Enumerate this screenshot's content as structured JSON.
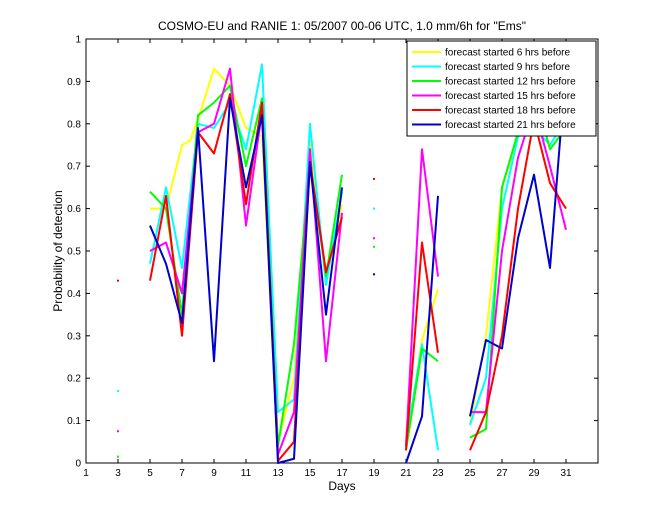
{
  "chart_data": {
    "type": "line",
    "title": "COSMO-EU and RANIE 1: 05/2007 00-06 UTC, 1.0 mm/6h for \"Ems\"",
    "xlabel": "Days",
    "ylabel": "Probability of detection",
    "xlim": [
      1,
      33
    ],
    "ylim": [
      0,
      1
    ],
    "xticks": [
      "1",
      "3",
      "5",
      "7",
      "9",
      "11",
      "13",
      "15",
      "17",
      "19",
      "21",
      "23",
      "25",
      "27",
      "29",
      "31"
    ],
    "yticks": [
      "0",
      "0.1",
      "0.2",
      "0.3",
      "0.4",
      "0.5",
      "0.6",
      "0.7",
      "0.8",
      "0.9",
      "1"
    ],
    "legend_position": "top-right",
    "series": [
      {
        "name": "forecast started 6 hrs before",
        "color": "#ffff00",
        "points": [
          [
            3,
            0.015
          ],
          [
            5,
            0.6
          ],
          [
            6,
            0.6
          ],
          [
            7,
            0.75
          ],
          [
            7.5,
            0.76
          ],
          [
            8,
            0.81
          ],
          [
            9,
            0.93
          ],
          [
            10,
            0.89
          ],
          [
            11,
            0.79
          ],
          [
            12,
            0.77
          ],
          [
            13,
            0.05
          ],
          [
            14,
            0.2
          ],
          [
            15,
            0.76
          ],
          [
            16,
            0.43
          ],
          [
            17,
            0.61
          ],
          [
            19,
            0.51
          ],
          [
            21,
            0.03
          ],
          [
            22,
            0.29
          ],
          [
            23,
            0.41
          ],
          [
            25,
            0.09
          ],
          [
            26,
            0.3
          ],
          [
            27,
            0.65
          ],
          [
            28,
            0.77
          ],
          [
            29,
            0.87
          ],
          [
            30,
            0.87
          ],
          [
            31,
            0.92
          ]
        ]
      },
      {
        "name": "forecast started 9 hrs before",
        "color": "#00ffff",
        "points": [
          [
            3,
            0.17
          ],
          [
            5,
            0.47
          ],
          [
            6,
            0.65
          ],
          [
            7,
            0.46
          ],
          [
            8,
            0.8
          ],
          [
            9,
            0.79
          ],
          [
            10,
            0.85
          ],
          [
            11,
            0.74
          ],
          [
            12,
            0.94
          ],
          [
            13,
            0.12
          ],
          [
            14,
            0.15
          ],
          [
            15,
            0.8
          ],
          [
            16,
            0.42
          ],
          [
            17,
            0.64
          ],
          [
            19,
            0.6
          ],
          [
            21,
            0.05
          ],
          [
            22,
            0.28
          ],
          [
            23,
            0.03
          ],
          [
            25,
            0.09
          ],
          [
            26,
            0.2
          ],
          [
            27,
            0.6
          ],
          [
            28,
            0.77
          ],
          [
            29,
            0.79
          ],
          [
            30,
            0.75
          ],
          [
            31,
            0.81
          ]
        ]
      },
      {
        "name": "forecast started 12 hrs before",
        "color": "#00ff00",
        "points": [
          [
            3,
            0.015
          ],
          [
            5,
            0.64
          ],
          [
            6,
            0.6
          ],
          [
            7,
            0.35
          ],
          [
            8,
            0.82
          ],
          [
            9,
            0.85
          ],
          [
            10,
            0.89
          ],
          [
            11,
            0.7
          ],
          [
            12,
            0.86
          ],
          [
            13,
            0.04
          ],
          [
            14,
            0.28
          ],
          [
            15,
            0.71
          ],
          [
            16,
            0.44
          ],
          [
            17,
            0.68
          ],
          [
            19,
            0.51
          ],
          [
            21,
            0.03
          ],
          [
            22,
            0.27
          ],
          [
            23,
            0.24
          ],
          [
            25,
            0.06
          ],
          [
            26,
            0.08
          ],
          [
            27,
            0.65
          ],
          [
            28,
            0.78
          ],
          [
            29,
            0.88
          ],
          [
            30,
            0.74
          ],
          [
            31,
            0.79
          ]
        ]
      },
      {
        "name": "forecast started 15 hrs before",
        "color": "#ff00ff",
        "points": [
          [
            3,
            0.075
          ],
          [
            5,
            0.5
          ],
          [
            6,
            0.52
          ],
          [
            7,
            0.4
          ],
          [
            8,
            0.78
          ],
          [
            9,
            0.8
          ],
          [
            10,
            0.93
          ],
          [
            11,
            0.56
          ],
          [
            12,
            0.83
          ],
          [
            13,
            0.02
          ],
          [
            14,
            0.12
          ],
          [
            15,
            0.74
          ],
          [
            16,
            0.24
          ],
          [
            17,
            0.59
          ],
          [
            19,
            0.53
          ],
          [
            21,
            0.04
          ],
          [
            22,
            0.74
          ],
          [
            23,
            0.44
          ],
          [
            25,
            0.12
          ],
          [
            26,
            0.12
          ],
          [
            27,
            0.5
          ],
          [
            28,
            0.72
          ],
          [
            29,
            0.84
          ],
          [
            30,
            0.7
          ],
          [
            31,
            0.55
          ]
        ]
      },
      {
        "name": "forecast started 18 hrs before",
        "color": "#ff0000",
        "points": [
          [
            3,
            0.43
          ],
          [
            5,
            0.43
          ],
          [
            6,
            0.63
          ],
          [
            7,
            0.3
          ],
          [
            8,
            0.78
          ],
          [
            9,
            0.73
          ],
          [
            10,
            0.87
          ],
          [
            11,
            0.61
          ],
          [
            12,
            0.85
          ],
          [
            13,
            0.005
          ],
          [
            14,
            0.05
          ],
          [
            15,
            0.71
          ],
          [
            16,
            0.45
          ],
          [
            17,
            0.58
          ],
          [
            19,
            0.67
          ],
          [
            21,
            0.03
          ],
          [
            22,
            0.52
          ],
          [
            23,
            0.26
          ],
          [
            25,
            0.03
          ],
          [
            26,
            0.12
          ],
          [
            27,
            0.3
          ],
          [
            28,
            0.6
          ],
          [
            29,
            0.81
          ],
          [
            30,
            0.66
          ],
          [
            31,
            0.6
          ]
        ]
      },
      {
        "name": "forecast started 21 hrs before",
        "color": "#0000cd",
        "points": [
          [
            5,
            0.56
          ],
          [
            6,
            0.47
          ],
          [
            7,
            0.33
          ],
          [
            8,
            0.79
          ],
          [
            9,
            0.24
          ],
          [
            10,
            0.86
          ],
          [
            11,
            0.65
          ],
          [
            12,
            0.82
          ],
          [
            13,
            0.0
          ],
          [
            14,
            0.01
          ],
          [
            15,
            0.71
          ],
          [
            16,
            0.35
          ],
          [
            17,
            0.65
          ],
          [
            19,
            0.445
          ],
          [
            21,
            0.0
          ],
          [
            22,
            0.11
          ],
          [
            23,
            0.63
          ],
          [
            25,
            0.11
          ],
          [
            26,
            0.29
          ],
          [
            27,
            0.27
          ],
          [
            28,
            0.53
          ],
          [
            29,
            0.68
          ],
          [
            30,
            0.46
          ],
          [
            31,
            0.94
          ]
        ]
      }
    ]
  }
}
